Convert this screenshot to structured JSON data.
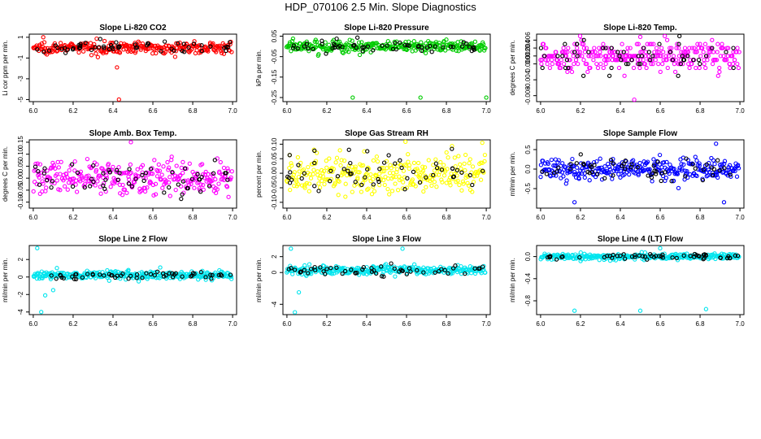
{
  "figure": {
    "title": "HDP_070106  2.5 Min. Slope Diagnostics"
  },
  "chart_data": [
    {
      "type": "scatter",
      "title": "Slope Li-820 CO2",
      "ylabel": "Li cor ppm per min.",
      "xlim": [
        5.98,
        7.02
      ],
      "ylim": [
        -5.2,
        1.3
      ],
      "xticks": [
        "6.0",
        "6.2",
        "6.4",
        "6.6",
        "6.8",
        "7.0"
      ],
      "yticks": [
        "1",
        "-1",
        "-3",
        "-5"
      ],
      "ytick_values": [
        1,
        -1,
        -3,
        -5
      ],
      "color": "#ff0000",
      "center": 0.0,
      "spread": 0.35,
      "outliers": [
        {
          "x": 6.42,
          "y": -1.9
        },
        {
          "x": 6.43,
          "y": -5.0
        },
        {
          "x": 6.05,
          "y": 1.0
        }
      ]
    },
    {
      "type": "scatter",
      "title": "Slope Li-820 Pressure",
      "ylabel": "kPa per min.",
      "xlim": [
        5.98,
        7.02
      ],
      "ylim": [
        -0.27,
        0.06
      ],
      "xticks": [
        "6.0",
        "6.2",
        "6.4",
        "6.6",
        "6.8",
        "7.0"
      ],
      "yticks": [
        "0.05",
        "-0.05",
        "-0.15",
        "-0.25"
      ],
      "ytick_values": [
        0.05,
        -0.05,
        -0.15,
        -0.25
      ],
      "color": "#00cc00",
      "center": 0.0,
      "spread": 0.02,
      "outliers": [
        {
          "x": 6.33,
          "y": -0.25
        },
        {
          "x": 6.67,
          "y": -0.25
        },
        {
          "x": 7.0,
          "y": -0.25
        }
      ]
    },
    {
      "type": "scatter",
      "title": "Slope Li-820 Temp.",
      "ylabel": "degrees C per min.",
      "xlim": [
        5.98,
        7.02
      ],
      "ylim": [
        -0.0095,
        0.0075
      ],
      "xticks": [
        "6.0",
        "6.2",
        "6.4",
        "6.6",
        "6.8",
        "7.0"
      ],
      "yticks": [
        "0.006",
        "0.004",
        "0.002",
        "0.000",
        "-0.004",
        "-0.008"
      ],
      "ytick_values": [
        0.006,
        0.004,
        0.002,
        0.0,
        -0.004,
        -0.008
      ],
      "color": "#ff00ff",
      "center": 0.002,
      "spread": 0.0025,
      "quantize": 0.001,
      "outliers": [
        {
          "x": 6.47,
          "y": -0.009
        },
        {
          "x": 6.5,
          "y": 0.0068
        }
      ]
    },
    {
      "type": "scatter",
      "title": "Slope Amb. Box Temp.",
      "ylabel": "degrees C per min.",
      "xlim": [
        5.98,
        7.02
      ],
      "ylim": [
        -0.125,
        0.16
      ],
      "xticks": [
        "6.0",
        "6.2",
        "6.4",
        "6.6",
        "6.8",
        "7.0"
      ],
      "yticks": [
        "0.15",
        "0.10",
        "0.05",
        "0.00",
        "-0.05",
        "-0.10"
      ],
      "ytick_values": [
        0.15,
        0.1,
        0.05,
        0.0,
        -0.05,
        -0.1
      ],
      "color": "#ff00ff",
      "center": 0.0,
      "spread": 0.045,
      "outliers": [
        {
          "x": 6.49,
          "y": 0.15
        }
      ]
    },
    {
      "type": "scatter",
      "title": "Slope Gas Stream RH",
      "ylabel": "percent per min.",
      "xlim": [
        5.98,
        7.02
      ],
      "ylim": [
        -0.12,
        0.115
      ],
      "xticks": [
        "6.0",
        "6.2",
        "6.4",
        "6.6",
        "6.8",
        "7.0"
      ],
      "yticks": [
        "0.10",
        "0.05",
        "0.00",
        "-0.05",
        "-0.10"
      ],
      "ytick_values": [
        0.1,
        0.05,
        0.0,
        -0.05,
        -0.1
      ],
      "color": "#ffff00",
      "center": 0.0,
      "spread": 0.045,
      "outliers": [
        {
          "x": 6.98,
          "y": 0.105
        }
      ]
    },
    {
      "type": "scatter",
      "title": "Slope Sample Flow",
      "ylabel": "ml/min per min.",
      "xlim": [
        5.98,
        7.02
      ],
      "ylim": [
        -1.0,
        0.75
      ],
      "xticks": [
        "6.0",
        "6.2",
        "6.4",
        "6.6",
        "6.8",
        "7.0"
      ],
      "yticks": [
        "0.5",
        "0.0",
        "-0.5"
      ],
      "ytick_values": [
        0.5,
        0.0,
        -0.5
      ],
      "color": "#0000ff",
      "center": 0.0,
      "spread": 0.18,
      "outliers": [
        {
          "x": 6.88,
          "y": 0.65
        },
        {
          "x": 6.92,
          "y": -0.85
        },
        {
          "x": 6.17,
          "y": -0.85
        }
      ]
    },
    {
      "type": "scatter",
      "title": "Slope Line 2 Flow",
      "ylabel": "ml/min per min.",
      "xlim": [
        5.98,
        7.02
      ],
      "ylim": [
        -4.3,
        3.6
      ],
      "xticks": [
        "6.0",
        "6.2",
        "6.4",
        "6.6",
        "6.8",
        "7.0"
      ],
      "yticks": [
        "2",
        "0",
        "-2",
        "-4"
      ],
      "ytick_values": [
        2,
        0,
        -2,
        -4
      ],
      "color": "#00e5ee",
      "center": 0.2,
      "spread": 0.3,
      "outliers": [
        {
          "x": 6.02,
          "y": 3.3
        },
        {
          "x": 6.04,
          "y": -4.0
        },
        {
          "x": 6.06,
          "y": -2.1
        },
        {
          "x": 6.1,
          "y": -1.5
        }
      ]
    },
    {
      "type": "scatter",
      "title": "Slope Line 3 Flow",
      "ylabel": "ml/min per min.",
      "xlim": [
        5.98,
        7.02
      ],
      "ylim": [
        -5.3,
        3.4
      ],
      "xticks": [
        "6.0",
        "6.2",
        "6.4",
        "6.6",
        "6.8",
        "7.0"
      ],
      "yticks": [
        "2",
        "0",
        "-4"
      ],
      "ytick_values": [
        2,
        0,
        -4
      ],
      "color": "#00e5ee",
      "center": 0.3,
      "spread": 0.35,
      "outliers": [
        {
          "x": 6.02,
          "y": 3.0
        },
        {
          "x": 6.04,
          "y": -5.0
        },
        {
          "x": 6.06,
          "y": -2.5
        },
        {
          "x": 6.58,
          "y": 3.0
        }
      ]
    },
    {
      "type": "scatter",
      "title": "Slope Line 4 (LT) Flow",
      "ylabel": "ml/min per min.",
      "xlim": [
        5.98,
        7.02
      ],
      "ylim": [
        -1.05,
        0.2
      ],
      "xticks": [
        "6.0",
        "6.2",
        "6.4",
        "6.6",
        "6.8",
        "7.0"
      ],
      "yticks": [
        "0.0",
        "-0.4",
        "-0.8"
      ],
      "ytick_values": [
        0.0,
        -0.4,
        -0.8
      ],
      "color": "#00e5ee",
      "center": 0.0,
      "spread": 0.035,
      "outliers": [
        {
          "x": 6.17,
          "y": -0.98
        },
        {
          "x": 6.5,
          "y": -0.98
        },
        {
          "x": 6.83,
          "y": -0.95
        },
        {
          "x": 6.6,
          "y": 0.15
        }
      ]
    }
  ]
}
